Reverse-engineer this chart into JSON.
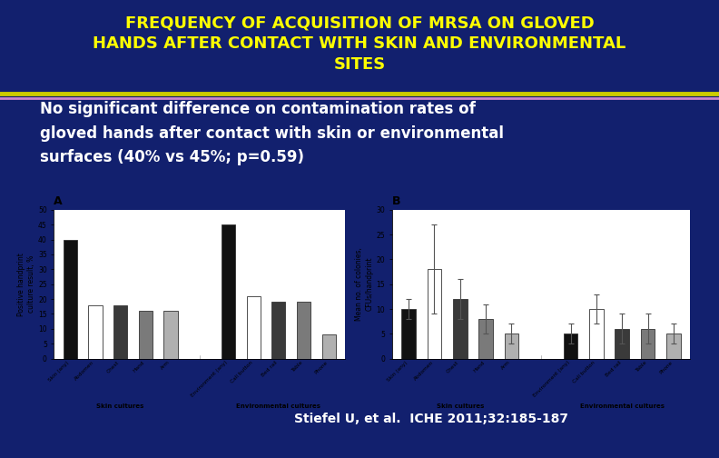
{
  "title_line1": "FREQUENCY OF ACQUISITION OF MRSA ON GLOVED",
  "title_line2": "HANDS AFTER CONTACT WITH SKIN AND ENVIRONMENTAL",
  "title_line3": "SITES",
  "title_color": "#FFFF00",
  "title_bg_color": "#12206e",
  "slide_bg_color": "#12206e",
  "subtitle_text": "No significant difference on contamination rates of\ngloved hands after contact with skin or environmental\nsurfaces (40% vs 45%; p=0.59)",
  "subtitle_color": "#ffffff",
  "subtitle_bg_color": "#12206e",
  "separator_color1": "#cccc00",
  "separator_color2": "#cc88cc",
  "citation": "Stiefel U, et al.  ICHE 2011;32:185-187",
  "citation_color": "#ffffff",
  "panel_A_title": "A",
  "panel_B_title": "B",
  "panel_A_ylabel": "Positive handprint\nculture result, %",
  "panel_B_ylabel": "Mean no. of colonies,\nCFUs/handprint",
  "panel_A_ylim": [
    0,
    50
  ],
  "panel_B_ylim": [
    0,
    30
  ],
  "panel_A_yticks": [
    0,
    5,
    10,
    15,
    20,
    25,
    30,
    35,
    40,
    45,
    50
  ],
  "panel_B_yticks": [
    0,
    5,
    10,
    15,
    20,
    25,
    30
  ],
  "skin_label": "Skin cultures",
  "env_label": "Environmental cultures",
  "A_skin_values": [
    40,
    18,
    18,
    16,
    16
  ],
  "A_skin_colors": [
    "#111111",
    "#ffffff",
    "#3a3a3a",
    "#7a7a7a",
    "#b0b0b0"
  ],
  "A_env_values": [
    45,
    21,
    19,
    19,
    8
  ],
  "A_env_colors": [
    "#111111",
    "#ffffff",
    "#3a3a3a",
    "#7a7a7a",
    "#b0b0b0"
  ],
  "B_skin_values": [
    10,
    18,
    12,
    8,
    5
  ],
  "B_skin_colors": [
    "#111111",
    "#ffffff",
    "#3a3a3a",
    "#7a7a7a",
    "#b0b0b0"
  ],
  "B_skin_errors": [
    2,
    9,
    4,
    3,
    2
  ],
  "B_env_values": [
    5,
    10,
    6,
    6,
    5
  ],
  "B_env_colors": [
    "#111111",
    "#ffffff",
    "#3a3a3a",
    "#7a7a7a",
    "#b0b0b0"
  ],
  "B_env_errors": [
    2,
    3,
    3,
    3,
    2
  ],
  "bar_edge_color": "#333333",
  "chart_bg": "#ffffff",
  "chart_border_color": "#aaaaaa",
  "skin_names": [
    "Skin (any)",
    "Abdomen",
    "Chest",
    "Hand",
    "Arm"
  ],
  "env_names": [
    "Environment (any)",
    "Call button",
    "Bed rail",
    "Table",
    "Phone"
  ],
  "title_fontsize": 13,
  "subtitle_fontsize": 12
}
